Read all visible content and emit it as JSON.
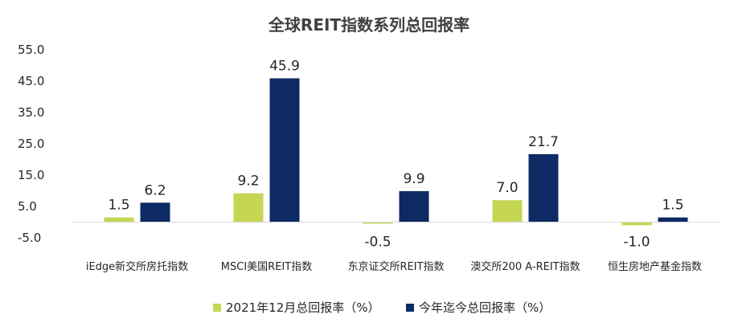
{
  "chart_data": {
    "type": "bar",
    "title": "全球REIT指数系列总回报率",
    "xlabel": "",
    "ylabel": "",
    "categories": [
      "iEdge新交所房托指数",
      "MSCI美国REIT指数",
      "东京证交所REIT指数",
      "澳交所200 A-REIT指数",
      "恒生房地产基金指数"
    ],
    "series": [
      {
        "name": "2021年12月总回报率（%）",
        "values": [
          1.5,
          9.2,
          -0.5,
          7.0,
          -1.0
        ],
        "color": "#c5d653"
      },
      {
        "name": "今年迄今总回报率（%）",
        "values": [
          6.2,
          45.9,
          9.9,
          21.7,
          1.5
        ],
        "color": "#0e2a64"
      }
    ],
    "data_labels": [
      [
        "1.5",
        "9.2",
        "-0.5",
        "7.0",
        "-1.0"
      ],
      [
        "6.2",
        "45.9",
        "9.9",
        "21.7",
        "1.5"
      ]
    ],
    "yticks": [
      -5.0,
      5.0,
      15.0,
      25.0,
      35.0,
      45.0,
      55.0
    ],
    "ytick_labels": [
      "-5.0",
      "5.0",
      "15.0",
      "25.0",
      "35.0",
      "45.0",
      "55.0"
    ],
    "ylim": [
      -5.0,
      55.0
    ],
    "grid": false,
    "legend_position": "bottom"
  }
}
